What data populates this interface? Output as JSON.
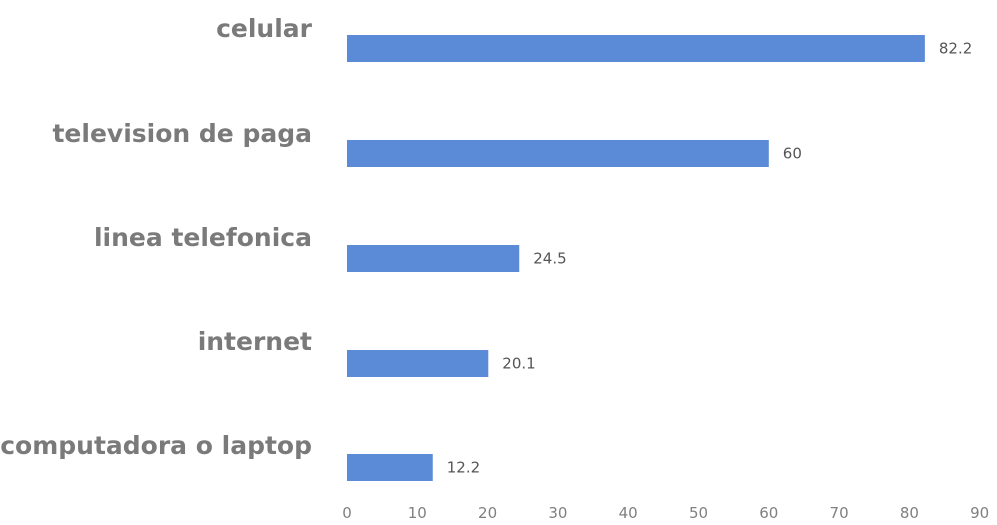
{
  "chart_data": {
    "type": "bar",
    "orientation": "horizontal",
    "categories": [
      "celular",
      "television de paga",
      "linea telefonica",
      "internet",
      "computadora o laptop"
    ],
    "values": [
      82.2,
      60,
      24.5,
      20.1,
      12.2
    ],
    "value_labels": [
      "82.2",
      "60",
      "24.5",
      "20.1",
      "12.2"
    ],
    "xlim": [
      0,
      90
    ],
    "x_ticks": [
      "0",
      "10",
      "20",
      "30",
      "40",
      "50",
      "60",
      "70",
      "80",
      "90"
    ],
    "bar_color": "#5b8bd6",
    "grid": false,
    "legend": "none"
  }
}
